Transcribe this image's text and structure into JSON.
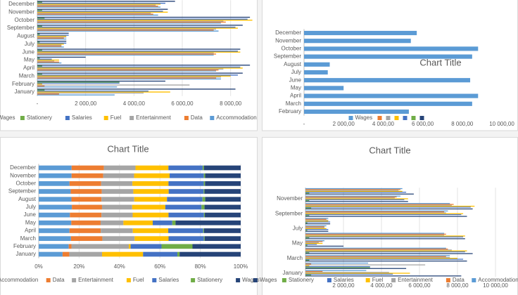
{
  "chart_data": [
    {
      "type": "bar_clustered",
      "grid": true,
      "legend": "bottom",
      "legend_reversed": true,
      "categories": [
        "January",
        "February",
        "March",
        "April",
        "May",
        "June",
        "July",
        "August",
        "September",
        "October",
        "November",
        "December"
      ],
      "series": [
        {
          "name": "Accommodation",
          "color": "#5b9bd5",
          "values": [
            3200,
            3300,
            7600,
            7400,
            1000,
            7300,
            1100,
            1200,
            7500,
            7600,
            5000,
            5100
          ]
        },
        {
          "name": "Data",
          "color": "#ed7d31",
          "values": [
            900,
            300,
            7400,
            7500,
            900,
            7400,
            1000,
            1100,
            7300,
            7800,
            4800,
            5000
          ]
        },
        {
          "name": "Entertainment",
          "color": "#a5a5a5",
          "values": [
            4400,
            6300,
            7600,
            7700,
            700,
            7300,
            1000,
            1200,
            7400,
            7700,
            4700,
            4900
          ]
        },
        {
          "name": "Fuel",
          "color": "#ffc000",
          "values": [
            5500,
            200,
            8000,
            8500,
            900,
            8400,
            1100,
            1200,
            8300,
            8900,
            5400,
            5100
          ]
        },
        {
          "name": "Salaries",
          "color": "#4472c4",
          "values": [
            4600,
            3400,
            8300,
            8400,
            600,
            8300,
            1200,
            1300,
            8200,
            8700,
            5200,
            5300
          ]
        },
        {
          "name": "Stationery",
          "color": "#70ad47",
          "values": [
            300,
            3400,
            200,
            200,
            100,
            200,
            100,
            100,
            200,
            300,
            200,
            200
          ]
        },
        {
          "name": "Wages",
          "color": "#264478",
          "values": [
            8200,
            5300,
            8500,
            8800,
            2000,
            8400,
            1200,
            1300,
            8500,
            8800,
            5400,
            5700
          ]
        }
      ],
      "xlim": [
        0,
        9000
      ],
      "xticks": [
        {
          "value": 0,
          "label": "-"
        },
        {
          "value": 2000,
          "label": "2 000,00"
        },
        {
          "value": 4000,
          "label": "4 000,00"
        },
        {
          "value": 6000,
          "label": "6 000,00"
        },
        {
          "value": 8000,
          "label": "8 000,00"
        }
      ]
    },
    {
      "type": "bar_clustered",
      "title": "Chart Title",
      "grid": false,
      "legend": "bottom",
      "categories": [
        "February",
        "March",
        "April",
        "May",
        "June",
        "July",
        "August",
        "September",
        "October",
        "November",
        "December"
      ],
      "series": [
        {
          "name": "Wages",
          "color": "#5b9bd5",
          "values": [
            5300,
            8500,
            8800,
            2000,
            8400,
            1200,
            1300,
            8500,
            8800,
            5400,
            5700
          ]
        }
      ],
      "legend_extra_colors": [
        "#ed7d31",
        "#a5a5a5",
        "#ffc000",
        "#4472c4",
        "#70ad47",
        "#264478"
      ],
      "xlim": [
        0,
        10000
      ],
      "xticks": [
        {
          "value": 0,
          "label": "-"
        },
        {
          "value": 2000,
          "label": "2 000,00"
        },
        {
          "value": 4000,
          "label": "4 000,00"
        },
        {
          "value": 6000,
          "label": "6 000,00"
        },
        {
          "value": 8000,
          "label": "8 000,00"
        },
        {
          "value": 10000,
          "label": "10 000,00"
        }
      ]
    },
    {
      "type": "bar_stacked_100",
      "title": "Chart Title",
      "grid": true,
      "legend": "bottom",
      "categories": [
        "January",
        "February",
        "March",
        "April",
        "May",
        "June",
        "July",
        "August",
        "September",
        "October",
        "November",
        "December"
      ],
      "series": [
        {
          "name": "Accommodation",
          "color": "#5b9bd5",
          "values": [
            3200,
            3300,
            7600,
            7400,
            1000,
            7300,
            1100,
            1200,
            7500,
            7600,
            5000,
            5100
          ]
        },
        {
          "name": "Data",
          "color": "#ed7d31",
          "values": [
            900,
            300,
            7400,
            7500,
            900,
            7400,
            1000,
            1100,
            7300,
            7800,
            4800,
            5000
          ]
        },
        {
          "name": "Entertainment",
          "color": "#a5a5a5",
          "values": [
            4400,
            6300,
            7600,
            7700,
            700,
            7300,
            1000,
            1200,
            7400,
            7700,
            4700,
            4900
          ]
        },
        {
          "name": "Fuel",
          "color": "#ffc000",
          "values": [
            5500,
            200,
            8000,
            8500,
            900,
            8400,
            1100,
            1200,
            8300,
            8900,
            5400,
            5100
          ]
        },
        {
          "name": "Salaries",
          "color": "#4472c4",
          "values": [
            4600,
            3400,
            8300,
            8400,
            600,
            8300,
            1200,
            1300,
            8200,
            8700,
            5200,
            5300
          ]
        },
        {
          "name": "Stationery",
          "color": "#70ad47",
          "values": [
            300,
            3400,
            200,
            200,
            100,
            200,
            100,
            100,
            200,
            300,
            200,
            200
          ]
        },
        {
          "name": "Wages",
          "color": "#264478",
          "values": [
            8200,
            5300,
            8500,
            8800,
            2000,
            8400,
            1200,
            1300,
            8500,
            8800,
            5400,
            5700
          ]
        }
      ],
      "xlim": [
        0,
        100
      ],
      "xticks": [
        {
          "value": 0,
          "label": "0%"
        },
        {
          "value": 20,
          "label": "20%"
        },
        {
          "value": 40,
          "label": "40%"
        },
        {
          "value": 60,
          "label": "60%"
        },
        {
          "value": 80,
          "label": "80%"
        },
        {
          "value": 100,
          "label": "100%"
        }
      ]
    },
    {
      "type": "bar_clustered",
      "title": "Chart Title",
      "grid": true,
      "legend": "bottom",
      "categories": [
        "January",
        null,
        "March",
        null,
        "May",
        null,
        "July",
        null,
        "September",
        null,
        "November",
        null
      ],
      "series": [
        {
          "name": "Wages",
          "color": "#264478",
          "values": [
            8200,
            5300,
            8500,
            8800,
            2000,
            8400,
            1200,
            1300,
            8500,
            8800,
            5400,
            5700
          ]
        },
        {
          "name": "Stationery",
          "color": "#70ad47",
          "values": [
            300,
            3400,
            200,
            200,
            100,
            200,
            100,
            100,
            200,
            300,
            200,
            200
          ]
        },
        {
          "name": "Salaries",
          "color": "#4472c4",
          "values": [
            4600,
            3400,
            8300,
            8400,
            600,
            8300,
            1200,
            1300,
            8200,
            8700,
            5200,
            5300
          ]
        },
        {
          "name": "Fuel",
          "color": "#ffc000",
          "values": [
            5500,
            200,
            8000,
            8500,
            900,
            8400,
            1100,
            1200,
            8300,
            8900,
            5400,
            5100
          ]
        },
        {
          "name": "Entertainment",
          "color": "#a5a5a5",
          "values": [
            4400,
            6300,
            7600,
            7700,
            700,
            7300,
            1000,
            1200,
            7400,
            7700,
            4700,
            4900
          ]
        },
        {
          "name": "Data",
          "color": "#ed7d31",
          "values": [
            900,
            300,
            7400,
            7500,
            900,
            7400,
            1000,
            1100,
            7300,
            7800,
            4800,
            5000
          ]
        },
        {
          "name": "Accommodation",
          "color": "#5b9bd5",
          "values": [
            3200,
            3300,
            7600,
            7400,
            1000,
            7300,
            1100,
            1200,
            7500,
            7600,
            5000,
            5100
          ]
        }
      ],
      "xlim": [
        0,
        10000
      ],
      "xticks": [
        {
          "value": 2000,
          "label": "2 000,00"
        },
        {
          "value": 4000,
          "label": "4 000,00"
        },
        {
          "value": 6000,
          "label": "6 000,00"
        },
        {
          "value": 8000,
          "label": "8 000,00"
        },
        {
          "value": 10000,
          "label": "10 000,00"
        }
      ]
    }
  ]
}
